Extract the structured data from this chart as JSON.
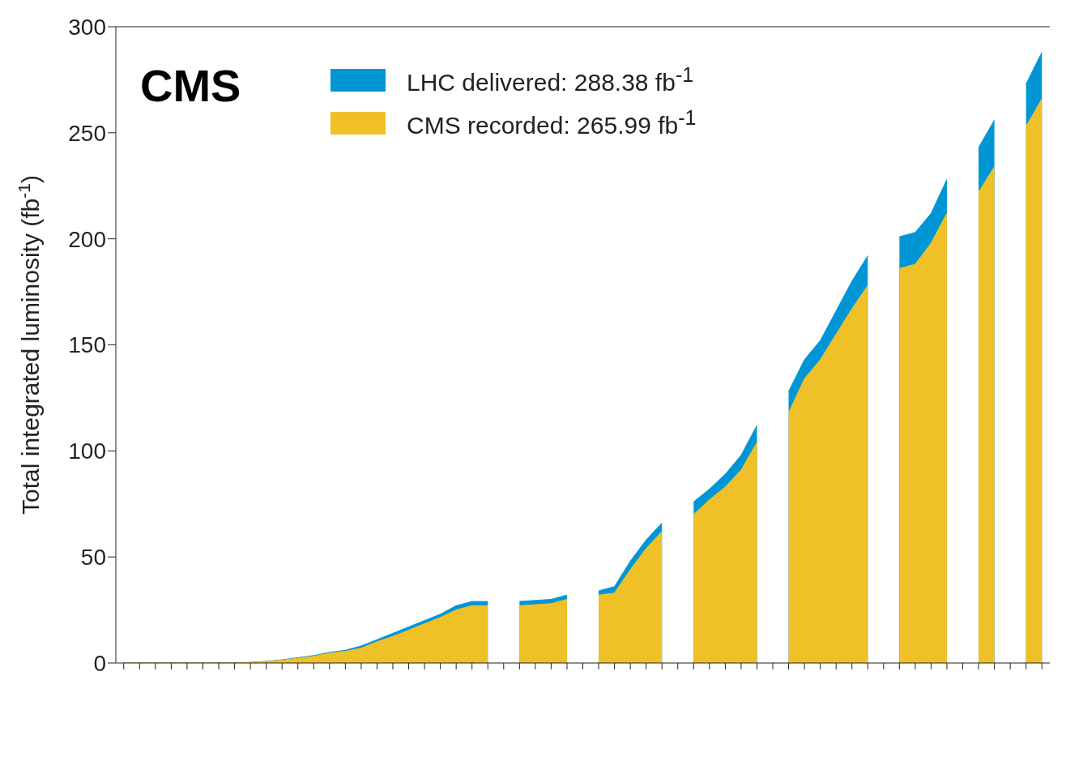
{
  "chart_data": {
    "type": "area",
    "title": "CMS",
    "ylabel": "Total integrated luminosity (fb$^{-1}$)",
    "categories": [
      null,
      null,
      null,
      null,
      null,
      null,
      null,
      null,
      null,
      null,
      null,
      null,
      null,
      null,
      null,
      null,
      null,
      null,
      null,
      null,
      null,
      null,
      null,
      null,
      null,
      null,
      null,
      null,
      null,
      null,
      null,
      null,
      null,
      null,
      null,
      null,
      null,
      null,
      null,
      null,
      null,
      null,
      null,
      null,
      null,
      null,
      null,
      null,
      null,
      null,
      null,
      null,
      null,
      null,
      null,
      null,
      null,
      null,
      null
    ],
    "series": [
      {
        "name": "LHC delivered: 288.38 fb$^{-1}$",
        "color": "#0096d6",
        "values": [
          0,
          0,
          0,
          0,
          0,
          0,
          0,
          0,
          0.3,
          0.8,
          1.5,
          2.5,
          3.5,
          5,
          6,
          8,
          11,
          14,
          17,
          20,
          23,
          27,
          29,
          29,
          null,
          29,
          29.5,
          30,
          32,
          null,
          34,
          36,
          48,
          58,
          66,
          null,
          76,
          82,
          89,
          98,
          112,
          null,
          128,
          143,
          152,
          166,
          180,
          192,
          null,
          201,
          203,
          212,
          228,
          null,
          243,
          256,
          null,
          273,
          288
        ]
      },
      {
        "name": "CMS recorded: 265.99 fb$^{-1}$",
        "color": "#f0c028",
        "values": [
          0,
          0,
          0,
          0,
          0,
          0,
          0,
          0,
          0.2,
          0.7,
          1.3,
          2.2,
          3.2,
          4.6,
          5.5,
          7,
          10,
          12.5,
          15.5,
          18.5,
          21.5,
          25,
          27,
          27,
          null,
          27,
          27.5,
          28,
          30,
          null,
          32,
          33,
          44,
          54,
          62,
          null,
          70,
          77,
          83,
          91,
          104,
          null,
          118,
          134,
          143,
          155,
          167,
          178,
          null,
          186,
          188,
          198,
          212,
          null,
          222,
          234,
          null,
          253,
          266
        ]
      }
    ],
    "ylim": [
      0,
      300
    ],
    "yticks": [
      0,
      50,
      100,
      150,
      200,
      250,
      300
    ],
    "legend": "top left"
  }
}
